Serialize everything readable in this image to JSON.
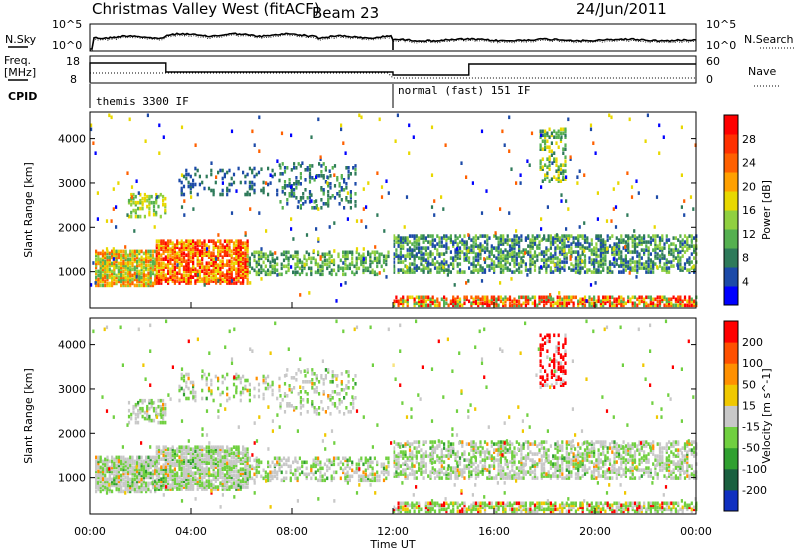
{
  "header": {
    "site": "Christmas Valley West (fitACF)",
    "beam": "Beam 23",
    "date": "24/Jun/2011"
  },
  "noise_panel": {
    "left_label": "N.Sky",
    "right_label": "N.Search",
    "left_ticks": [
      "10^5",
      "10^0"
    ],
    "right_ticks": [
      "10^5",
      "10^0"
    ]
  },
  "freq_panel": {
    "left_label_1": "Freq.",
    "left_label_2": "[MHz]",
    "right_label": "Nave",
    "left_ticks": [
      "18",
      "8"
    ],
    "right_ticks": [
      "60",
      "0"
    ]
  },
  "cpid": {
    "label": "CPID",
    "segments": [
      {
        "text": "themis 3300 IF",
        "start_hour": 0
      },
      {
        "text": "normal (fast) 151 IF",
        "start_hour": 12
      }
    ]
  },
  "chart_data": [
    {
      "type": "heatmap",
      "panel": "power",
      "ylabel": "Slant Range [km]",
      "yticks": [
        "4000",
        "3000",
        "2000",
        "1000"
      ],
      "ylim": [
        180,
        4600
      ],
      "colorbar_label": "Power [dB]",
      "colorbar_ticks": [
        "28",
        "24",
        "20",
        "16",
        "12",
        "8",
        "4"
      ],
      "colors": [
        "#0000ff",
        "#1c4aa8",
        "#2e7a5a",
        "#55b050",
        "#90d040",
        "#e8d800",
        "#ffa000",
        "#ff6000",
        "#ff3000",
        "#ff0000"
      ]
    },
    {
      "type": "heatmap",
      "panel": "velocity",
      "ylabel": "Slant Range [km]",
      "yticks": [
        "4000",
        "3000",
        "2000",
        "1000"
      ],
      "ylim": [
        180,
        4600
      ],
      "colorbar_label": "Velocity [m s^-1]",
      "colorbar_ticks": [
        "200",
        "100",
        "50",
        "15",
        "-15",
        "-50",
        "-100",
        "-200"
      ],
      "colors": [
        "#1030c0",
        "#1a6040",
        "#30a030",
        "#70d040",
        "#c8c8c8",
        "#f0c800",
        "#ff9000",
        "#ff5000",
        "#ff0000"
      ]
    }
  ],
  "time_axis": {
    "label": "Time UT",
    "ticks": [
      "00:00",
      "04:00",
      "08:00",
      "12:00",
      "16:00",
      "20:00",
      "00:00"
    ]
  }
}
